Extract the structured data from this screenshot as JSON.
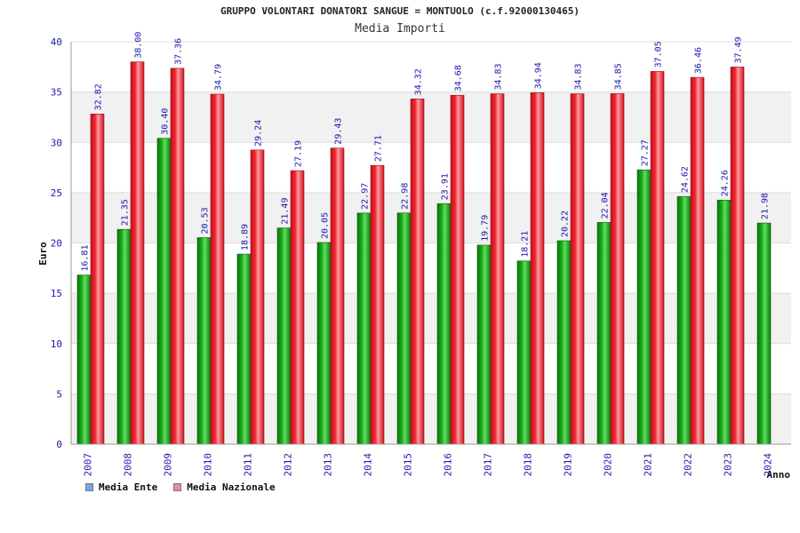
{
  "chart_data": {
    "type": "bar",
    "title": "GRUPPO VOLONTARI DONATORI SANGUE = MONTUOLO (c.f.92000130465)",
    "subtitle": "Media Importi",
    "xlabel": "Anno",
    "ylabel": "Euro",
    "ylim": [
      0,
      40
    ],
    "yticks": [
      0,
      5,
      10,
      15,
      20,
      25,
      30,
      35,
      40
    ],
    "categories": [
      "2007",
      "2008",
      "2009",
      "2010",
      "2011",
      "2012",
      "2013",
      "2014",
      "2015",
      "2016",
      "2017",
      "2018",
      "2019",
      "2020",
      "2021",
      "2022",
      "2023",
      "2024"
    ],
    "series": [
      {
        "name": "Media Ente",
        "color": "#1fa81f",
        "legend_color": "#6fa8e8",
        "values": [
          16.81,
          21.35,
          30.4,
          20.53,
          18.89,
          21.49,
          20.05,
          22.97,
          22.98,
          23.91,
          19.79,
          18.21,
          20.22,
          22.04,
          27.27,
          24.62,
          24.26,
          21.98
        ],
        "labels": [
          "16.81",
          "21.35",
          "30.40",
          "20.53",
          "18.89",
          "21.49",
          "20.05",
          "22.97",
          "22.98",
          "23.91",
          "19.79",
          "18.21",
          "20.22",
          "22.04",
          "27.27",
          "24.62",
          "24.26",
          "21.98"
        ]
      },
      {
        "name": "Media Nazionale",
        "color": "#e81e2a",
        "legend_color": "#e88ab0",
        "values": [
          32.82,
          38.0,
          37.36,
          34.79,
          29.24,
          27.19,
          29.43,
          27.71,
          34.32,
          34.68,
          34.83,
          34.94,
          34.83,
          34.85,
          37.05,
          36.46,
          37.49,
          null
        ],
        "labels": [
          "32.82",
          "38.00",
          "37.36",
          "34.79",
          "29.24",
          "27.19",
          "29.43",
          "27.71",
          "34.32",
          "34.68",
          "34.83",
          "34.94",
          "34.83",
          "34.85",
          "37.05",
          "36.46",
          "37.49",
          ""
        ]
      }
    ],
    "grid": true,
    "legend": "bottom-left"
  }
}
